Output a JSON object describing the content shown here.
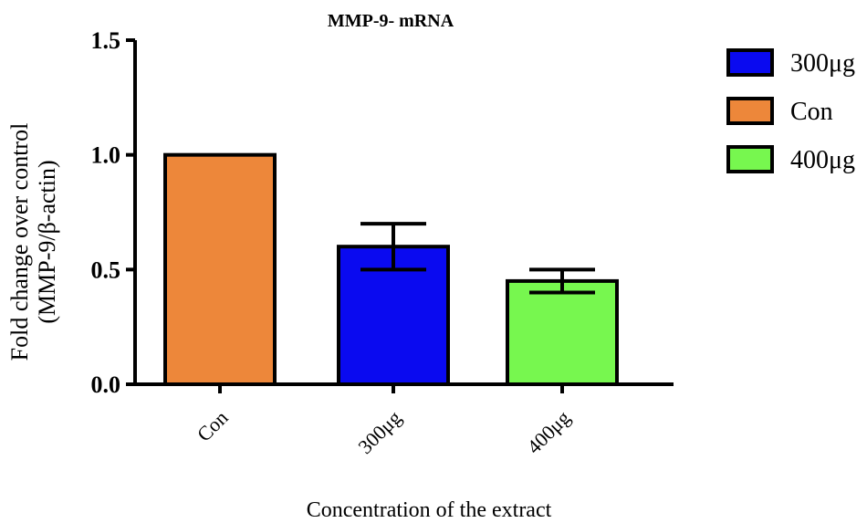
{
  "chart_data": {
    "type": "bar",
    "title": "MMP-9- mRNA",
    "xlabel": "Concentration of the extract",
    "ylabel_line1": "Fold change over control",
    "ylabel_line2": "(MMP-9/β-actin)",
    "ylim": [
      0,
      1.5
    ],
    "yticks": [
      "0.0",
      "0.5",
      "1.0",
      "1.5"
    ],
    "grid": false,
    "legend_position": "right",
    "categories": [
      "Con",
      "300μg",
      "400μg"
    ],
    "values": [
      1.0,
      0.6,
      0.45
    ],
    "error_upper": [
      0,
      0.1,
      0.05
    ],
    "error_lower": [
      0,
      0.1,
      0.05
    ],
    "colors": [
      "#ED873A",
      "#0A0AF0",
      "#77F74F"
    ],
    "legend": [
      {
        "label": "300μg",
        "color": "#0A0AF0"
      },
      {
        "label": "Con",
        "color": "#ED873A"
      },
      {
        "label": "400μg",
        "color": "#77F74F"
      }
    ]
  }
}
